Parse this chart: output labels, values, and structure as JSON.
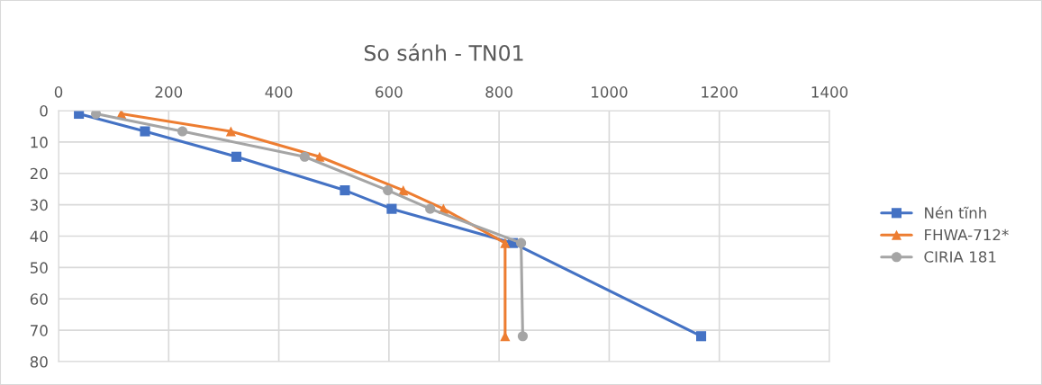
{
  "chart_data": {
    "type": "line",
    "title": "So sánh - TN01",
    "series": [
      {
        "name": "Nén tĩnh",
        "color": "#4472c4",
        "marker": "square",
        "x": [
          37,
          157,
          323,
          520,
          605,
          825,
          1167
        ],
        "values": [
          1,
          6.6,
          14.7,
          25.4,
          31.3,
          42.2,
          71.9
        ]
      },
      {
        "name": "FHWA-712*",
        "color": "#ed7d31",
        "marker": "triangle",
        "x": [
          114,
          313,
          474,
          626,
          699,
          811,
          811
        ],
        "values": [
          1,
          6.6,
          14.7,
          25.4,
          31.3,
          42.2,
          71.9
        ]
      },
      {
        "name": "CIRIA 181",
        "color": "#a5a5a5",
        "marker": "circle",
        "x": [
          68,
          225,
          447,
          598,
          675,
          840,
          843
        ],
        "values": [
          1,
          6.6,
          14.7,
          25.4,
          31.3,
          42.2,
          71.9
        ]
      }
    ],
    "xlim": [
      0,
      1400
    ],
    "xticks": [
      0,
      200,
      400,
      600,
      800,
      1000,
      1200,
      1400
    ],
    "ylim": [
      80,
      0
    ],
    "yticks": [
      0,
      10,
      20,
      30,
      40,
      50,
      60,
      70,
      80
    ],
    "grid": true,
    "legend": "right"
  }
}
